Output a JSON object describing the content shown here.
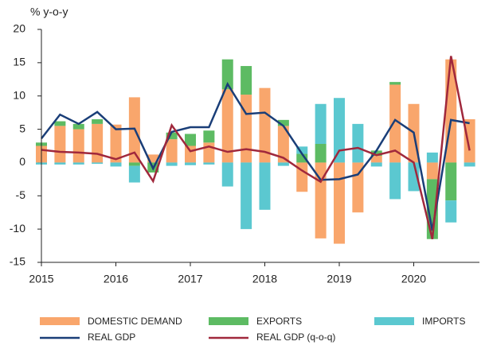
{
  "chart_data": {
    "type": "stacked-bar-line",
    "y_label": "% y-o-y",
    "categories": [
      "2015",
      null,
      null,
      null,
      "2016",
      null,
      null,
      null,
      "2017",
      null,
      null,
      null,
      "2018",
      null,
      null,
      null,
      "2019",
      null,
      null,
      null,
      "2020",
      null,
      null,
      null
    ],
    "ylim": [
      -15,
      20
    ],
    "yticks": [
      -15,
      -10,
      -5,
      0,
      5,
      10,
      15,
      20
    ],
    "series": [
      {
        "name": "DOMESTIC DEMAND",
        "kind": "bar",
        "color": "#f9a66c",
        "values": [
          2.5,
          5.5,
          5.0,
          5.8,
          5.7,
          9.8,
          1.2,
          3.5,
          2.5,
          3.0,
          11.0,
          10.2,
          11.2,
          5.5,
          -4.4,
          -11.4,
          -12.2,
          -7.5,
          1.0,
          11.7,
          8.8,
          -2.5,
          15.5,
          6.5
        ]
      },
      {
        "name": "EXPORTS",
        "kind": "bar",
        "color": "#5dbb63",
        "values": [
          0.5,
          0.7,
          0.8,
          0.7,
          0,
          -0.5,
          -1.5,
          1.0,
          1.8,
          1.8,
          4.5,
          4.3,
          0,
          0.9,
          1.3,
          2.8,
          0,
          0,
          0.8,
          0.4,
          0,
          -9.0,
          -5.7,
          0
        ]
      },
      {
        "name": "IMPORTS",
        "kind": "bar",
        "color": "#5bc8d0",
        "values": [
          -0.3,
          -0.3,
          -0.3,
          -0.2,
          -0.6,
          -2.5,
          0,
          -0.5,
          -0.4,
          -0.3,
          -3.6,
          -10.0,
          -7.1,
          -0.5,
          1.1,
          6.0,
          9.7,
          5.8,
          -0.6,
          -5.5,
          -4.3,
          1.5,
          -3.3,
          -0.6
        ]
      },
      {
        "name": "REAL GDP",
        "kind": "line",
        "color": "#1a3e78",
        "values": [
          3.6,
          7.2,
          5.8,
          7.6,
          5.0,
          5.1,
          -0.9,
          4.6,
          5.3,
          5.3,
          11.8,
          7.3,
          7.5,
          5.5,
          1.3,
          -2.6,
          -2.5,
          -1.8,
          1.8,
          6.4,
          4.5,
          -10.2,
          6.4,
          5.9
        ]
      },
      {
        "name": "REAL GDP (q-o-q)",
        "kind": "line",
        "color": "#a0283c",
        "values": [
          1.9,
          1.6,
          1.5,
          1.3,
          0.5,
          1.5,
          -2.8,
          5.6,
          1.7,
          2.4,
          1.6,
          2.0,
          1.6,
          0.7,
          -1.2,
          -2.9,
          1.8,
          2.2,
          1.1,
          1.8,
          0.0,
          -11.5,
          16.0,
          1.8
        ]
      }
    ]
  }
}
